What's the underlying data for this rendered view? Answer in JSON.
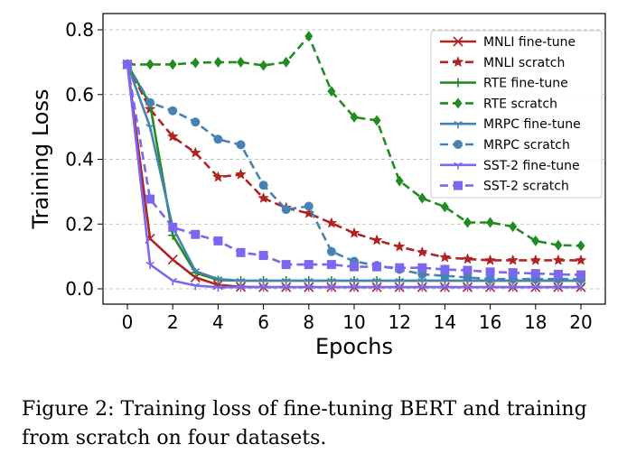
{
  "chart_data": {
    "type": "line",
    "xlabel": "Epochs",
    "ylabel": "Training Loss",
    "xlim": [
      0,
      20
    ],
    "ylim": [
      0,
      0.8
    ],
    "xticks": [
      "0",
      "2",
      "4",
      "6",
      "8",
      "10",
      "12",
      "14",
      "16",
      "18",
      "20"
    ],
    "yticks": [
      "0.0",
      "0.2",
      "0.4",
      "0.6",
      "0.8"
    ],
    "grid": "horizontal dashed",
    "legend_position": "top-right",
    "x": [
      0,
      1,
      2,
      3,
      4,
      5,
      6,
      7,
      8,
      9,
      10,
      11,
      12,
      13,
      14,
      15,
      16,
      17,
      18,
      19,
      20
    ],
    "series": [
      {
        "name": "MNLI fine-tune",
        "color": "#b22222",
        "dash": "solid",
        "marker": "x",
        "values": [
          0.693,
          0.155,
          0.09,
          0.035,
          0.012,
          0.006,
          0.005,
          0.005,
          0.005,
          0.005,
          0.005,
          0.005,
          0.005,
          0.005,
          0.005,
          0.005,
          0.005,
          0.005,
          0.005,
          0.005,
          0.005
        ]
      },
      {
        "name": "MNLI scratch",
        "color": "#b22222",
        "dash": "dashed",
        "marker": "star",
        "values": [
          0.693,
          0.555,
          0.47,
          0.42,
          0.345,
          0.353,
          0.28,
          0.25,
          0.233,
          0.203,
          0.172,
          0.15,
          0.13,
          0.113,
          0.097,
          0.092,
          0.088,
          0.088,
          0.088,
          0.088,
          0.088
        ]
      },
      {
        "name": "RTE fine-tune",
        "color": "#228b22",
        "dash": "solid",
        "marker": "plus",
        "values": [
          0.693,
          0.57,
          0.165,
          0.05,
          0.027,
          0.025,
          0.025,
          0.025,
          0.025,
          0.025,
          0.025,
          0.025,
          0.025,
          0.025,
          0.025,
          0.025,
          0.025,
          0.025,
          0.025,
          0.025,
          0.025
        ]
      },
      {
        "name": "RTE scratch",
        "color": "#228b22",
        "dash": "dashed",
        "marker": "diamond",
        "values": [
          0.693,
          0.693,
          0.693,
          0.698,
          0.7,
          0.7,
          0.69,
          0.7,
          0.78,
          0.61,
          0.53,
          0.52,
          0.333,
          0.28,
          0.253,
          0.205,
          0.205,
          0.192,
          0.148,
          0.135,
          0.133
        ]
      },
      {
        "name": "MRPC fine-tune",
        "color": "#4682b4",
        "dash": "solid",
        "marker": "tri",
        "values": [
          0.693,
          0.5,
          0.19,
          0.055,
          0.03,
          0.025,
          0.025,
          0.025,
          0.025,
          0.025,
          0.025,
          0.025,
          0.025,
          0.025,
          0.025,
          0.025,
          0.025,
          0.025,
          0.025,
          0.025,
          0.025
        ]
      },
      {
        "name": "MRPC scratch",
        "color": "#4682b4",
        "dash": "dashed",
        "marker": "circle",
        "values": [
          0.693,
          0.575,
          0.55,
          0.515,
          0.462,
          0.445,
          0.32,
          0.245,
          0.255,
          0.115,
          0.085,
          0.072,
          0.06,
          0.045,
          0.04,
          0.035,
          0.03,
          0.03,
          0.03,
          0.03,
          0.03
        ]
      },
      {
        "name": "SST-2 fine-tune",
        "color": "#7b68ee",
        "dash": "solid",
        "marker": "tri",
        "values": [
          0.693,
          0.075,
          0.025,
          0.01,
          0.005,
          0.005,
          0.005,
          0.005,
          0.005,
          0.005,
          0.005,
          0.005,
          0.005,
          0.005,
          0.005,
          0.005,
          0.005,
          0.005,
          0.005,
          0.005,
          0.005
        ]
      },
      {
        "name": "SST-2 scratch",
        "color": "#7b68ee",
        "dash": "dashed",
        "marker": "square",
        "values": [
          0.693,
          0.277,
          0.19,
          0.168,
          0.148,
          0.112,
          0.103,
          0.075,
          0.075,
          0.075,
          0.068,
          0.068,
          0.065,
          0.065,
          0.06,
          0.057,
          0.052,
          0.05,
          0.047,
          0.045,
          0.043
        ]
      }
    ]
  },
  "caption": "Figure 2: Training loss of fine-tuning BERT and training from scratch on four datasets."
}
